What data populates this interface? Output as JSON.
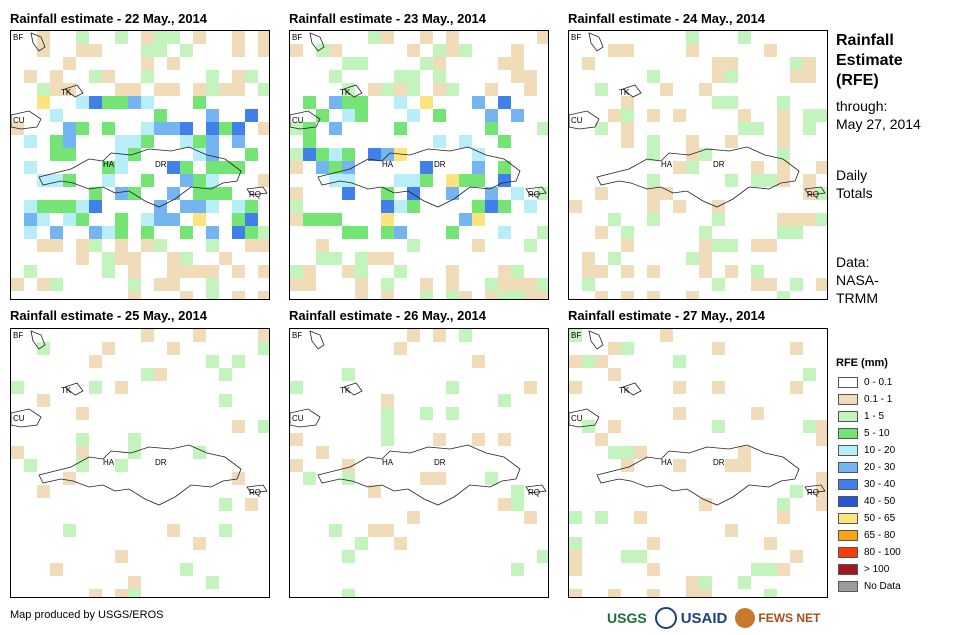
{
  "panels": [
    {
      "title": "Rainfall estimate - 22 May., 2014"
    },
    {
      "title": "Rainfall estimate - 23 May., 2014"
    },
    {
      "title": "Rainfall estimate - 24 May., 2014"
    },
    {
      "title": "Rainfall estimate - 25 May., 2014"
    },
    {
      "title": "Rainfall estimate - 26 May., 2014"
    },
    {
      "title": "Rainfall estimate - 27 May., 2014"
    }
  ],
  "map_labels": {
    "bf": "BF",
    "tk": "TK",
    "cu": "CU",
    "ha": "HA",
    "dr": "DR",
    "rq": "RQ"
  },
  "side": {
    "title_lines": [
      "Rainfall",
      "Estimate",
      "(RFE)"
    ],
    "through": "through:",
    "date": "May 27, 2014",
    "daily": "Daily",
    "totals": "Totals",
    "data_label": "Data:",
    "data_source_1": "NASA-",
    "data_source_2": "TRMM"
  },
  "legend": {
    "title": "RFE (mm)",
    "items": [
      {
        "label": "0 - 0.1",
        "color": "#ffffff"
      },
      {
        "label": "0.1 - 1",
        "color": "#f0dcb8"
      },
      {
        "label": "1 - 5",
        "color": "#c4f4be"
      },
      {
        "label": "5 - 10",
        "color": "#74e474"
      },
      {
        "label": "10 - 20",
        "color": "#b8eef8"
      },
      {
        "label": "20 - 30",
        "color": "#74b4f0"
      },
      {
        "label": "30 - 40",
        "color": "#4080e8"
      },
      {
        "label": "40 - 50",
        "color": "#2458d8"
      },
      {
        "label": "50 - 65",
        "color": "#fce47c"
      },
      {
        "label": "65 - 80",
        "color": "#fca414"
      },
      {
        "label": "80 - 100",
        "color": "#fc3c00"
      },
      {
        "label": "> 100",
        "color": "#a01818"
      },
      {
        "label": "No Data",
        "color": "#9c9c9c"
      }
    ]
  },
  "footer": {
    "credit": "Map produced by USGS/EROS"
  },
  "logos": {
    "usgs": "USGS",
    "usaid": "USAID",
    "fews": "FEWS NET"
  }
}
